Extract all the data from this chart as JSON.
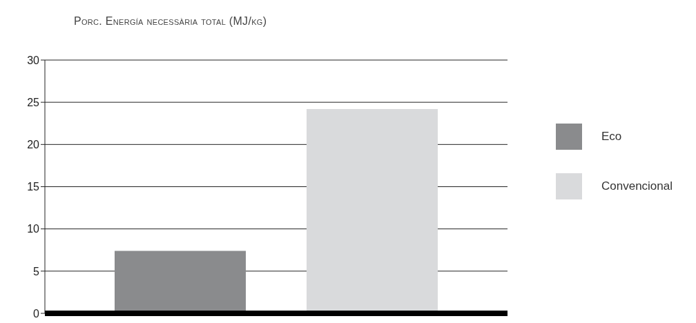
{
  "chart_data": {
    "type": "bar",
    "title": "Porc. Energía necessària total (MJ/kg)",
    "categories": [
      null
    ],
    "series": [
      {
        "name": "Eco",
        "color": "#8a8b8d",
        "values": [
          7.4
        ]
      },
      {
        "name": "Convencional",
        "color": "#d9dadc",
        "values": [
          24.2
        ]
      }
    ],
    "ylim": [
      0,
      30
    ],
    "yticks": [
      0,
      5,
      10,
      15,
      20,
      25,
      30
    ],
    "grid": "y",
    "legend": "right"
  }
}
